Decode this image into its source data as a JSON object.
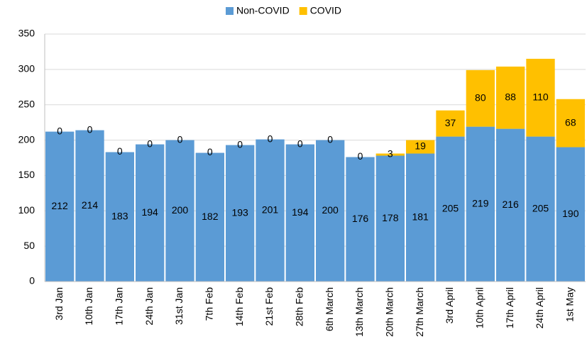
{
  "chart_data": {
    "type": "stacked_bar",
    "categories": [
      "3rd Jan",
      "10th Jan",
      "17th Jan",
      "24th Jan",
      "31st Jan",
      "7th Feb",
      "14th Feb",
      "21st Feb",
      "28th Feb",
      "6th March",
      "13th March",
      "20th March",
      "27th March",
      "3rd April",
      "10th April",
      "17th April",
      "24th April",
      "1st May"
    ],
    "series": [
      {
        "name": "Non-COVID",
        "color": "#5b9bd5",
        "values": [
          212,
          214,
          183,
          194,
          200,
          182,
          193,
          201,
          194,
          200,
          176,
          178,
          181,
          205,
          219,
          216,
          205,
          190
        ]
      },
      {
        "name": "COVID",
        "color": "#ffc000",
        "values": [
          0,
          0,
          0,
          0,
          0,
          0,
          0,
          0,
          0,
          0,
          0,
          3,
          19,
          37,
          80,
          88,
          110,
          68
        ]
      }
    ],
    "ylim": [
      0,
      350
    ],
    "yticks": [
      0,
      50,
      100,
      150,
      200,
      250,
      300,
      350
    ],
    "grid": true,
    "legend": "top"
  }
}
